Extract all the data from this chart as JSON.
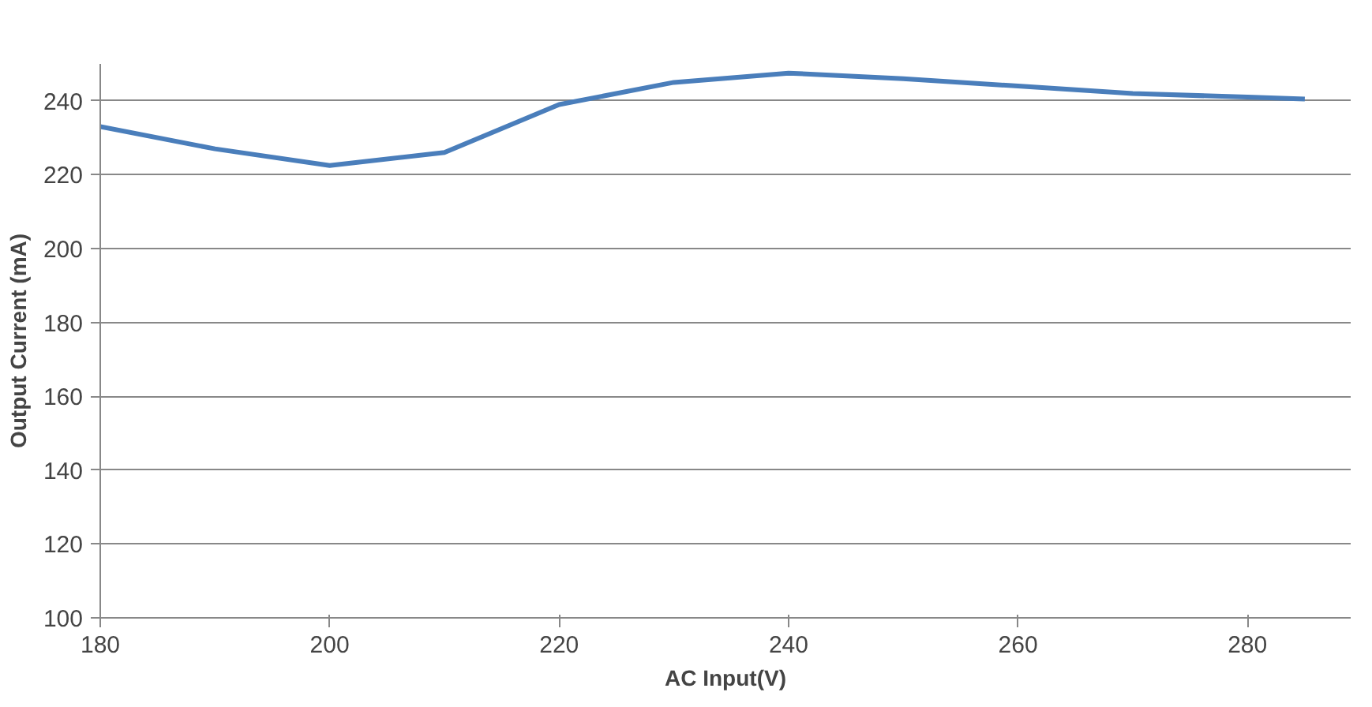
{
  "chart_data": {
    "type": "line",
    "xlabel": "AC Input(V)",
    "ylabel": "Output Current (mA)",
    "x": [
      180,
      190,
      200,
      210,
      220,
      230,
      240,
      250,
      260,
      270,
      280,
      285
    ],
    "series": [
      {
        "color": "#4a7ebb",
        "values": [
          233,
          227,
          222.5,
          226,
          239,
          245,
          247.5,
          246,
          244,
          242,
          241,
          240.5
        ]
      }
    ],
    "xlim": [
      180,
      289
    ],
    "ylim": [
      100,
      250
    ],
    "xticks": [
      180,
      200,
      220,
      240,
      260,
      280
    ],
    "yticks": [
      100,
      120,
      140,
      160,
      180,
      200,
      220,
      240
    ],
    "grid": "y",
    "marker": "none",
    "line_style": "solid"
  }
}
